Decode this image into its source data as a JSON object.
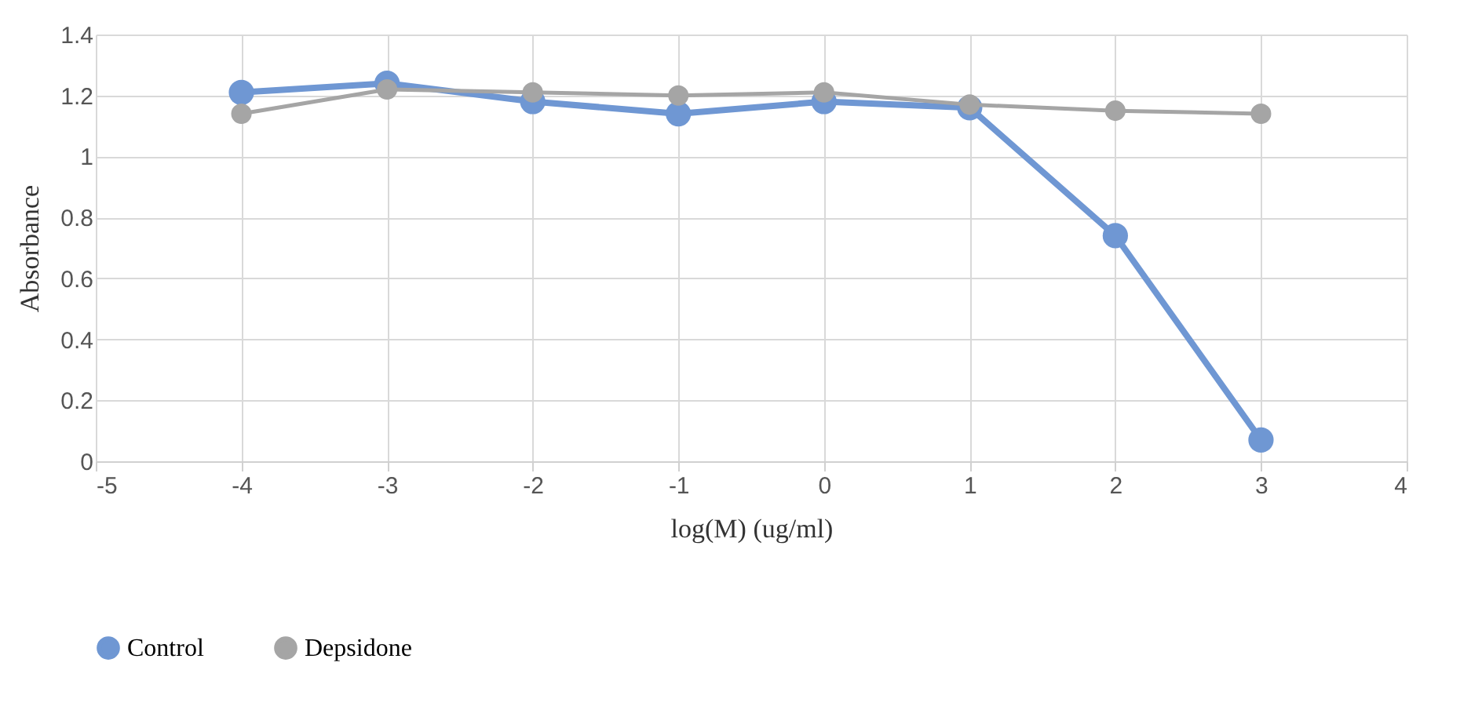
{
  "chart_data": {
    "type": "line",
    "xlabel": "log(M) (ug/ml)",
    "ylabel": "Absorbance",
    "x": [
      -4,
      -3,
      -2,
      -1,
      0,
      1,
      2,
      3
    ],
    "series": [
      {
        "name": "Control",
        "color": "#6f97d3",
        "values": [
          1.21,
          1.24,
          1.18,
          1.14,
          1.18,
          1.16,
          0.74,
          0.07
        ]
      },
      {
        "name": "Depsidone",
        "color": "#a5a5a5",
        "values": [
          1.14,
          1.22,
          1.21,
          1.2,
          1.21,
          1.17,
          1.15,
          1.14
        ]
      }
    ],
    "xlim": [
      -5,
      4
    ],
    "xticks": [
      -5,
      -4,
      -3,
      -2,
      -1,
      0,
      1,
      2,
      3,
      4
    ],
    "ylim": [
      0,
      1.4
    ],
    "yticks": [
      0,
      {
        "value": 0.2,
        "label": "0.2"
      },
      {
        "value": 0.4,
        "label": "0.4"
      },
      {
        "value": 0.6,
        "label": "0.6"
      },
      {
        "value": 0.8,
        "label": "0.8"
      },
      1,
      {
        "value": 1.2,
        "label": "1.2"
      },
      {
        "value": 1.4,
        "label": "1.4"
      }
    ],
    "grid": true,
    "legend": "bottom",
    "marker": "circle",
    "line_style": "solid"
  }
}
